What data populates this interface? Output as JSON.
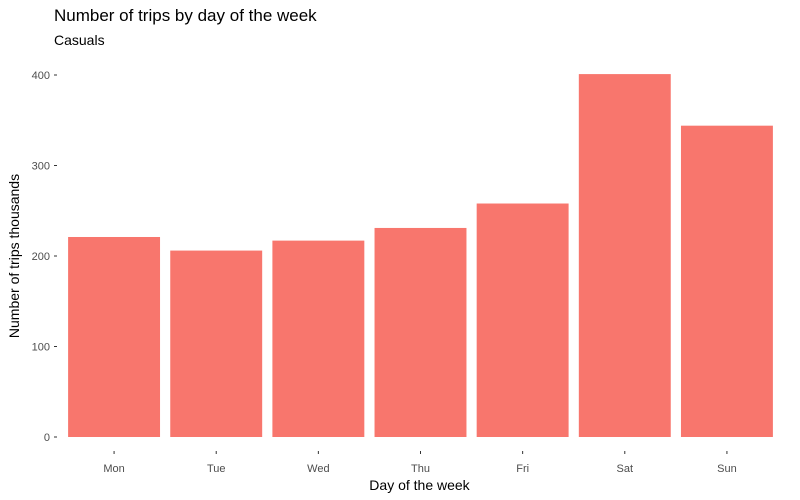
{
  "chart_data": {
    "type": "bar",
    "title": "Number of trips by day of the week",
    "subtitle": "Casuals",
    "xlabel": "Day of the week",
    "ylabel": "Number of trips thousands",
    "categories": [
      "Mon",
      "Tue",
      "Wed",
      "Thu",
      "Fri",
      "Sat",
      "Sun"
    ],
    "values": [
      221,
      206,
      217,
      231,
      258,
      401,
      344
    ],
    "ylim": [
      0,
      400
    ],
    "yticks": [
      0,
      100,
      200,
      300,
      400
    ],
    "grid": false,
    "bar_color": "#F8766D",
    "legend": "none"
  }
}
